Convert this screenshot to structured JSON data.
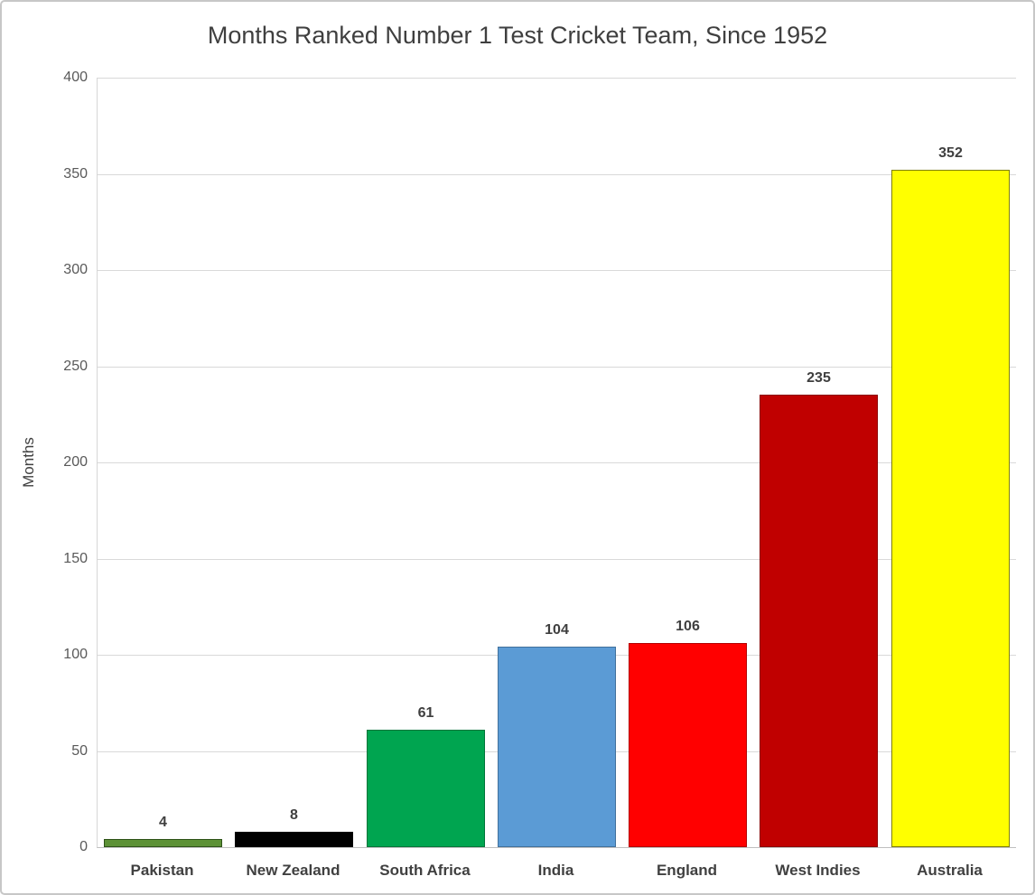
{
  "chart_data": {
    "type": "bar",
    "title": "Months Ranked Number 1 Test Cricket Team, Since 1952",
    "xlabel": "",
    "ylabel": "Months",
    "ylim": [
      0,
      400
    ],
    "ytick_step": 50,
    "grid": true,
    "legend": false,
    "categories": [
      "Pakistan",
      "New Zealand",
      "South Africa",
      "India",
      "England",
      "West Indies",
      "Australia"
    ],
    "values": [
      4,
      8,
      61,
      104,
      106,
      235,
      352
    ],
    "bar_fill_colors": [
      "#5c9136",
      "#000000",
      "#00a550",
      "#5b9bd5",
      "#ff0000",
      "#c00000",
      "#ffff00"
    ],
    "bar_border_colors": [
      "#2e5318",
      "#000000",
      "#00753a",
      "#41719c",
      "#b40000",
      "#8b0000",
      "#7f7f00"
    ],
    "value_labels_shown": true
  },
  "frame": {
    "border_color": "#c7c7c7",
    "background": "#ffffff"
  }
}
